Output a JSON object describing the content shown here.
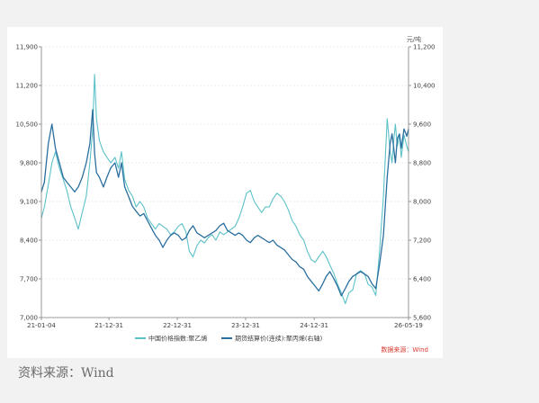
{
  "source_caption": "资料来源：Wind",
  "chart_data": {
    "type": "line",
    "right_unit": "元/吨",
    "source_note": "数据来源：Wind",
    "left_axis": {
      "min": 7000,
      "max": 11900,
      "ticks": [
        7000,
        7700,
        8400,
        9100,
        9800,
        10500,
        11200,
        11900
      ]
    },
    "right_axis": {
      "min": 5600,
      "max": 11200,
      "ticks": [
        5600,
        6400,
        7200,
        8000,
        8800,
        9600,
        10400,
        11200
      ]
    },
    "x_axis": {
      "start": "2021-01-04",
      "end": "2026-05-19",
      "tick_labels": [
        "21-01-04",
        "21-12-31",
        "22-12-31",
        "23-12-31",
        "24-12-31",
        "26-05-19"
      ]
    },
    "series": [
      {
        "name": "中国价格指数:聚乙烯",
        "axis": "left",
        "color": "#5cc1c8",
        "x": [
          "2021-01-04",
          "2021-01-20",
          "2021-02-10",
          "2021-03-01",
          "2021-03-20",
          "2021-04-10",
          "2021-05-01",
          "2021-05-20",
          "2021-06-10",
          "2021-07-01",
          "2021-07-20",
          "2021-08-10",
          "2021-09-01",
          "2021-09-20",
          "2021-10-05",
          "2021-10-15",
          "2021-10-25",
          "2021-11-10",
          "2021-12-01",
          "2021-12-20",
          "2022-01-10",
          "2022-02-01",
          "2022-02-20",
          "2022-03-08",
          "2022-03-25",
          "2022-04-15",
          "2022-05-05",
          "2022-05-25",
          "2022-06-15",
          "2022-07-05",
          "2022-07-25",
          "2022-08-15",
          "2022-09-05",
          "2022-09-25",
          "2022-10-15",
          "2022-11-05",
          "2022-11-25",
          "2022-12-15",
          "2023-01-05",
          "2023-01-25",
          "2023-02-15",
          "2023-03-05",
          "2023-03-25",
          "2023-04-15",
          "2023-05-05",
          "2023-05-25",
          "2023-06-15",
          "2023-07-05",
          "2023-07-25",
          "2023-08-15",
          "2023-09-05",
          "2023-09-25",
          "2023-10-15",
          "2023-11-05",
          "2023-11-25",
          "2023-12-15",
          "2024-01-05",
          "2024-01-25",
          "2024-02-15",
          "2024-03-05",
          "2024-03-25",
          "2024-04-15",
          "2024-05-05",
          "2024-05-25",
          "2024-06-15",
          "2024-07-05",
          "2024-07-25",
          "2024-08-15",
          "2024-09-05",
          "2024-09-25",
          "2024-10-15",
          "2024-11-05",
          "2024-11-25",
          "2024-12-15",
          "2025-01-05",
          "2025-01-25",
          "2025-02-15",
          "2025-03-05",
          "2025-03-25",
          "2025-04-15",
          "2025-05-05",
          "2025-05-25",
          "2025-06-15",
          "2025-07-05",
          "2025-07-25",
          "2025-08-15",
          "2025-09-05",
          "2025-09-25",
          "2025-10-15",
          "2025-11-05",
          "2025-11-25",
          "2025-12-15",
          "2026-01-05",
          "2026-01-25",
          "2026-02-10",
          "2026-02-20",
          "2026-03-01",
          "2026-03-10",
          "2026-03-20",
          "2026-04-01",
          "2026-04-10",
          "2026-04-25",
          "2026-05-10",
          "2026-05-19"
        ],
        "values": [
          8800,
          9000,
          9400,
          9800,
          10000,
          9700,
          9500,
          9300,
          9000,
          8800,
          8600,
          8900,
          9200,
          9800,
          10400,
          11400,
          10600,
          10200,
          10000,
          9900,
          9800,
          9900,
          9700,
          10000,
          9500,
          9300,
          9200,
          9000,
          9100,
          9000,
          8800,
          8700,
          8600,
          8700,
          8650,
          8600,
          8500,
          8550,
          8650,
          8700,
          8550,
          8200,
          8100,
          8300,
          8400,
          8350,
          8450,
          8500,
          8400,
          8550,
          8500,
          8550,
          8600,
          8650,
          8800,
          9000,
          9250,
          9300,
          9100,
          9000,
          8900,
          9000,
          9000,
          9150,
          9250,
          9200,
          9100,
          8950,
          8750,
          8650,
          8500,
          8400,
          8200,
          8050,
          8000,
          8100,
          8200,
          8100,
          7950,
          7800,
          7600,
          7450,
          7250,
          7450,
          7500,
          7800,
          7850,
          7800,
          7600,
          7550,
          7400,
          8200,
          9200,
          10600,
          10000,
          9800,
          10200,
          10500,
          10100,
          10300,
          9900,
          10300,
          10100,
          10000
        ]
      },
      {
        "name": "期货结算价(连续):聚丙烯(右轴)",
        "axis": "right",
        "color": "#2b6f9f",
        "x": [
          "2021-01-04",
          "2021-01-20",
          "2021-02-10",
          "2021-03-01",
          "2021-03-20",
          "2021-04-10",
          "2021-05-01",
          "2021-05-20",
          "2021-06-10",
          "2021-07-01",
          "2021-07-20",
          "2021-08-10",
          "2021-09-01",
          "2021-09-20",
          "2021-10-05",
          "2021-10-15",
          "2021-10-25",
          "2021-11-10",
          "2021-12-01",
          "2021-12-20",
          "2022-01-10",
          "2022-02-01",
          "2022-02-20",
          "2022-03-08",
          "2022-03-25",
          "2022-04-15",
          "2022-05-05",
          "2022-05-25",
          "2022-06-15",
          "2022-07-05",
          "2022-07-25",
          "2022-08-15",
          "2022-09-05",
          "2022-09-25",
          "2022-10-15",
          "2022-11-05",
          "2022-11-25",
          "2022-12-15",
          "2023-01-05",
          "2023-01-25",
          "2023-02-15",
          "2023-03-05",
          "2023-03-25",
          "2023-04-15",
          "2023-05-05",
          "2023-05-25",
          "2023-06-15",
          "2023-07-05",
          "2023-07-25",
          "2023-08-15",
          "2023-09-05",
          "2023-09-25",
          "2023-10-15",
          "2023-11-05",
          "2023-11-25",
          "2023-12-15",
          "2024-01-05",
          "2024-01-25",
          "2024-02-15",
          "2024-03-05",
          "2024-03-25",
          "2024-04-15",
          "2024-05-05",
          "2024-05-25",
          "2024-06-15",
          "2024-07-05",
          "2024-07-25",
          "2024-08-15",
          "2024-09-05",
          "2024-09-25",
          "2024-10-15",
          "2024-11-05",
          "2024-11-25",
          "2024-12-15",
          "2025-01-05",
          "2025-01-25",
          "2025-02-15",
          "2025-03-05",
          "2025-03-25",
          "2025-04-15",
          "2025-05-05",
          "2025-05-25",
          "2025-06-15",
          "2025-07-05",
          "2025-07-25",
          "2025-08-15",
          "2025-09-05",
          "2025-09-25",
          "2025-10-15",
          "2025-11-05",
          "2025-11-25",
          "2025-12-15",
          "2026-01-05",
          "2026-01-25",
          "2026-02-10",
          "2026-02-20",
          "2026-03-01",
          "2026-03-10",
          "2026-03-20",
          "2026-04-01",
          "2026-04-10",
          "2026-04-25",
          "2026-05-10",
          "2026-05-19"
        ],
        "values": [
          8200,
          8400,
          9200,
          9600,
          9100,
          8800,
          8500,
          8400,
          8300,
          8200,
          8300,
          8500,
          8800,
          9200,
          9900,
          9000,
          8600,
          8500,
          8300,
          8500,
          8700,
          8800,
          8500,
          8800,
          8300,
          8100,
          7900,
          7800,
          7700,
          7750,
          7600,
          7450,
          7300,
          7200,
          7050,
          7200,
          7300,
          7350,
          7300,
          7200,
          7250,
          7400,
          7500,
          7350,
          7300,
          7250,
          7300,
          7350,
          7400,
          7500,
          7550,
          7400,
          7350,
          7300,
          7350,
          7300,
          7200,
          7150,
          7250,
          7300,
          7250,
          7200,
          7150,
          7200,
          7100,
          7050,
          7000,
          6900,
          6800,
          6750,
          6650,
          6600,
          6450,
          6350,
          6250,
          6150,
          6300,
          6450,
          6550,
          6400,
          6250,
          6050,
          6200,
          6350,
          6450,
          6500,
          6550,
          6500,
          6450,
          6300,
          6200,
          6700,
          7300,
          8500,
          9200,
          9400,
          9100,
          8800,
          9300,
          9400,
          9100,
          9500,
          9350,
          9500
        ]
      }
    ]
  }
}
